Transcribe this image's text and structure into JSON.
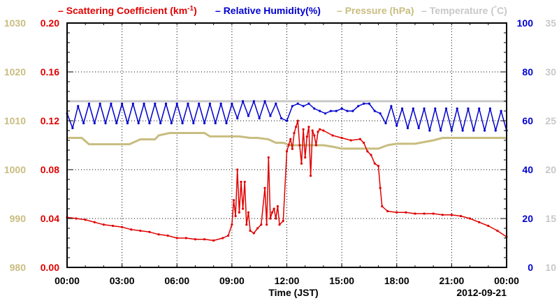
{
  "chart_data": {
    "type": "line",
    "legend": {
      "placement": "top",
      "items": [
        {
          "label": "Scattering Coefficient (km",
          "sup": "-1",
          "tail": ")",
          "color": "#e00000"
        },
        {
          "label": "Relative Humidity(%)",
          "color": "#0000d0"
        },
        {
          "label": "Pressure (hPa)",
          "color": "#c8bd80"
        },
        {
          "label": "Temperature (",
          "sup": "°",
          "tail": "C)",
          "color": "#c8c8c8"
        }
      ]
    },
    "xlabel": "Time (JST)",
    "date_label": "2012-09-21",
    "x_ticks": [
      "00:00",
      "03:00",
      "06:00",
      "09:00",
      "12:00",
      "15:00",
      "18:00",
      "21:00",
      "00:00"
    ],
    "xlim_hours": [
      0,
      24
    ],
    "grid": true,
    "axes": {
      "pressure": {
        "range": [
          980,
          1030
        ],
        "ticks": [
          "980",
          "990",
          "1000",
          "1010",
          "1020",
          "1030"
        ],
        "color": "#c8bd80"
      },
      "scattering": {
        "range": [
          0,
          0.2
        ],
        "ticks": [
          "0.00",
          "0.04",
          "0.08",
          "0.12",
          "0.16",
          "0.20"
        ],
        "color": "#e00000"
      },
      "humidity": {
        "range": [
          0,
          100
        ],
        "ticks": [
          "0",
          "20",
          "40",
          "60",
          "80",
          "100"
        ],
        "color": "#0000d0"
      },
      "temperature": {
        "range": [
          10,
          35
        ],
        "ticks": [
          "10",
          "15",
          "20",
          "25",
          "30",
          "35"
        ],
        "color": "#c8c8c8"
      }
    },
    "series": [
      {
        "name": "Scattering Coefficient",
        "axis": "scattering",
        "color": "#e00000",
        "x": [
          0,
          0.5,
          1,
          1.5,
          2,
          2.5,
          3,
          3.5,
          4,
          4.5,
          5,
          5.5,
          6,
          6.5,
          7,
          7.5,
          8,
          8.5,
          8.8,
          9,
          9.1,
          9.2,
          9.3,
          9.4,
          9.5,
          9.6,
          9.7,
          9.8,
          9.9,
          10,
          10.2,
          10.4,
          10.6,
          10.8,
          10.9,
          11,
          11.1,
          11.2,
          11.3,
          11.4,
          11.5,
          11.6,
          11.8,
          12,
          12.1,
          12.2,
          12.3,
          12.4,
          12.5,
          12.6,
          12.7,
          12.8,
          12.9,
          13,
          13.1,
          13.2,
          13.3,
          13.4,
          13.5,
          13.6,
          13.7,
          13.8,
          14,
          14.5,
          15,
          15.5,
          16,
          16.2,
          16.4,
          16.6,
          16.8,
          17,
          17.1,
          17.2,
          17.5,
          18,
          18.5,
          19,
          19.5,
          20,
          20.5,
          21,
          21.5,
          22,
          22.5,
          23,
          23.5,
          24
        ],
        "y": [
          0.041,
          0.04,
          0.039,
          0.037,
          0.035,
          0.034,
          0.033,
          0.031,
          0.03,
          0.029,
          0.027,
          0.026,
          0.024,
          0.024,
          0.023,
          0.023,
          0.022,
          0.024,
          0.026,
          0.035,
          0.055,
          0.042,
          0.08,
          0.045,
          0.07,
          0.048,
          0.07,
          0.035,
          0.045,
          0.03,
          0.028,
          0.032,
          0.035,
          0.065,
          0.035,
          0.09,
          0.04,
          0.045,
          0.048,
          0.04,
          0.05,
          0.035,
          0.038,
          0.095,
          0.1,
          0.105,
          0.097,
          0.11,
          0.115,
          0.12,
          0.1,
          0.085,
          0.113,
          0.09,
          0.107,
          0.115,
          0.075,
          0.112,
          0.108,
          0.1,
          0.111,
          0.113,
          0.112,
          0.108,
          0.106,
          0.104,
          0.105,
          0.102,
          0.095,
          0.092,
          0.085,
          0.083,
          0.065,
          0.05,
          0.046,
          0.045,
          0.045,
          0.044,
          0.044,
          0.044,
          0.043,
          0.043,
          0.042,
          0.04,
          0.037,
          0.034,
          0.03,
          0.025
        ]
      },
      {
        "name": "Relative Humidity",
        "axis": "humidity",
        "color": "#0000d0",
        "x": [
          0,
          0.3,
          0.6,
          0.9,
          1.2,
          1.5,
          1.8,
          2.1,
          2.4,
          2.7,
          3,
          3.3,
          3.6,
          3.9,
          4.2,
          4.5,
          4.8,
          5.1,
          5.4,
          5.7,
          6,
          6.3,
          6.6,
          6.9,
          7.2,
          7.5,
          7.8,
          8.1,
          8.4,
          8.7,
          9,
          9.3,
          9.6,
          9.9,
          10.2,
          10.5,
          10.8,
          11.1,
          11.4,
          11.7,
          12,
          12.3,
          12.6,
          12.9,
          13.2,
          13.5,
          13.8,
          14.1,
          14.4,
          14.7,
          15,
          15.3,
          15.6,
          15.9,
          16.2,
          16.5,
          16.8,
          17.1,
          17.4,
          17.7,
          18,
          18.3,
          18.6,
          18.9,
          19.2,
          19.5,
          19.8,
          20.1,
          20.4,
          20.7,
          21,
          21.3,
          21.6,
          21.9,
          22.2,
          22.5,
          22.8,
          23.1,
          23.4,
          23.7,
          24
        ],
        "y": [
          63,
          57,
          66,
          59,
          67,
          59,
          67,
          59,
          67,
          59,
          67,
          59,
          67,
          59,
          67,
          59,
          67,
          59,
          67,
          59,
          67,
          59,
          67,
          59,
          67,
          59,
          67,
          59,
          67,
          59,
          67,
          61,
          68,
          62,
          68,
          61,
          68,
          62,
          67,
          61,
          60,
          66,
          67,
          66,
          67,
          65,
          64,
          63,
          64,
          64,
          65,
          64,
          64,
          66,
          67,
          67,
          64,
          63,
          59,
          66,
          58,
          65,
          57,
          65,
          57,
          65,
          56,
          65,
          56,
          65,
          56,
          65,
          56,
          65,
          56,
          65,
          56,
          65,
          56,
          64,
          56
        ]
      },
      {
        "name": "Pressure",
        "axis": "pressure",
        "color": "#c8bd80",
        "x": [
          0,
          0.8,
          1.2,
          1.6,
          2.5,
          3.4,
          4,
          4.8,
          5,
          5.6,
          6,
          7.5,
          7.8,
          8.2,
          8.8,
          9.4,
          10,
          10.4,
          11,
          11.4,
          11.8,
          12.2,
          13,
          14,
          14.5,
          15,
          16,
          16.6,
          17,
          17.5,
          18,
          19,
          20,
          20.5,
          21,
          22,
          23,
          24
        ],
        "y": [
          1006.5,
          1006.5,
          1005.2,
          1005.2,
          1005.2,
          1005.2,
          1006.2,
          1006.2,
          1007,
          1007.5,
          1007.5,
          1007.5,
          1006.8,
          1006.8,
          1006.8,
          1006.8,
          1006.5,
          1006.5,
          1006.2,
          1005.5,
          1005.5,
          1005,
          1005,
          1005,
          1004.7,
          1004.3,
          1004.3,
          1004.3,
          1004.3,
          1005,
          1005.3,
          1005.3,
          1006,
          1006.5,
          1006.5,
          1006.5,
          1006.5,
          1006.5
        ]
      },
      {
        "name": "Temperature",
        "axis": "temperature",
        "color": "#c8c8c8",
        "x": [
          0,
          24
        ],
        "y": [
          27,
          27
        ]
      }
    ]
  }
}
